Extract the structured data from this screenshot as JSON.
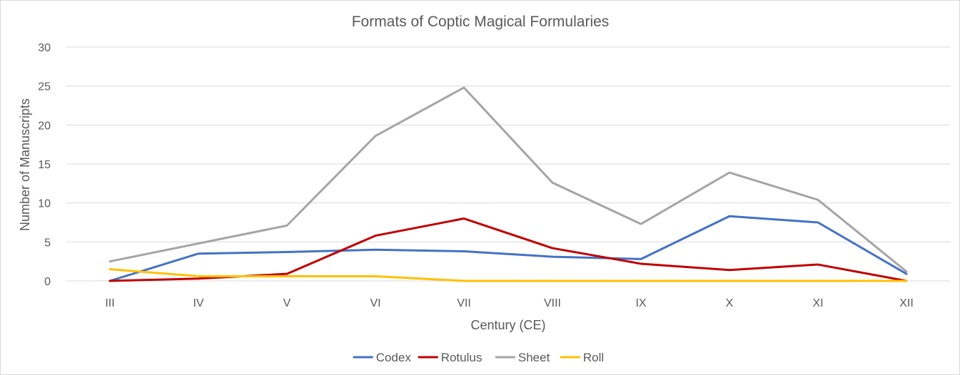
{
  "chart_data": {
    "type": "line",
    "title": "Formats of Coptic Magical Formularies",
    "xlabel": "Century (CE)",
    "ylabel": "Number of Manuscripts",
    "categories": [
      "III",
      "IV",
      "V",
      "VI",
      "VII",
      "VIII",
      "IX",
      "X",
      "XI",
      "XII"
    ],
    "ylim": [
      0,
      30
    ],
    "yticks": [
      0,
      5,
      10,
      15,
      20,
      25,
      30
    ],
    "grid": true,
    "legend_position": "bottom",
    "series": [
      {
        "name": "Codex",
        "color": "#4472c4",
        "values": [
          0,
          3.5,
          3.7,
          4.0,
          3.8,
          3.1,
          2.8,
          8.3,
          7.5,
          0.9
        ]
      },
      {
        "name": "Rotulus",
        "color": "#c00000",
        "values": [
          0,
          0.3,
          0.9,
          5.8,
          8.0,
          4.2,
          2.2,
          1.4,
          2.1,
          0
        ]
      },
      {
        "name": "Sheet",
        "color": "#a5a5a5",
        "values": [
          2.5,
          4.8,
          7.1,
          18.6,
          24.8,
          12.6,
          7.3,
          13.9,
          10.4,
          1.2
        ]
      },
      {
        "name": "Roll",
        "color": "#ffc000",
        "values": [
          1.5,
          0.6,
          0.6,
          0.6,
          0,
          0,
          0,
          0,
          0,
          0
        ]
      }
    ]
  }
}
